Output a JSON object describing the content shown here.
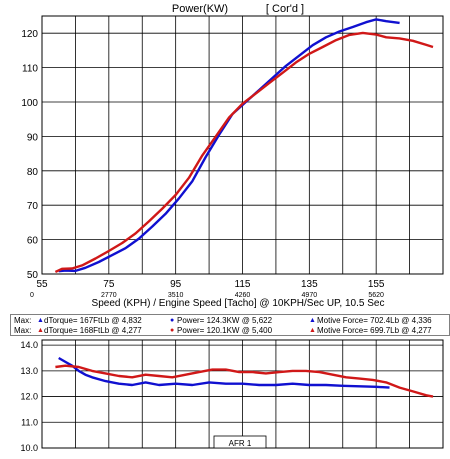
{
  "window": {
    "title": "Power(KW)",
    "mode": "[ Cor'd ]"
  },
  "colors": {
    "run1": "#1010d0",
    "run2": "#d01818",
    "grid": "#000000",
    "background": "#ffffff"
  },
  "chart_data": [
    {
      "type": "line",
      "title": "Power(KW)",
      "subtitle": "[ Cor'd ]",
      "xlabel": "Speed (KPH) / Engine Speed [Tacho] @ 10KPH/Sec UP, 10.5 Sec",
      "ylabel": "",
      "xlim": [
        55,
        175
      ],
      "ylim": [
        50,
        125
      ],
      "grid": true,
      "legend": "none",
      "x_ticks": [
        "55",
        "75",
        "95",
        "115",
        "135",
        "155"
      ],
      "x_secondary_ticks": [
        "0",
        "2770",
        "3510",
        "4260",
        "4970",
        "5620"
      ],
      "y_ticks": [
        "50",
        "60",
        "70",
        "80",
        "90",
        "100",
        "110",
        "120"
      ],
      "series": [
        {
          "color": "#1010d0",
          "points": [
            [
              60,
              50.8
            ],
            [
              62,
              51.0
            ],
            [
              65,
              50.9
            ],
            [
              68,
              51.8
            ],
            [
              72,
              53.5
            ],
            [
              76,
              55.5
            ],
            [
              80,
              57.5
            ],
            [
              84,
              60.3
            ],
            [
              88,
              63.8
            ],
            [
              92,
              67.5
            ],
            [
              96,
              72.0
            ],
            [
              100,
              77.0
            ],
            [
              104,
              84.0
            ],
            [
              108,
              90.5
            ],
            [
              112,
              96.5
            ],
            [
              116,
              100.0
            ],
            [
              120,
              103.5
            ],
            [
              124,
              107.0
            ],
            [
              128,
              110.5
            ],
            [
              132,
              113.5
            ],
            [
              136,
              116.5
            ],
            [
              140,
              118.8
            ],
            [
              144,
              120.5
            ],
            [
              148,
              121.8
            ],
            [
              152,
              123.2
            ],
            [
              155,
              124.0
            ],
            [
              158,
              123.5
            ],
            [
              162,
              123.0
            ]
          ]
        },
        {
          "color": "#d01818",
          "points": [
            [
              59,
              50.6
            ],
            [
              61,
              51.5
            ],
            [
              64,
              51.6
            ],
            [
              67,
              52.5
            ],
            [
              71,
              54.5
            ],
            [
              75,
              56.7
            ],
            [
              79,
              59.0
            ],
            [
              83,
              61.8
            ],
            [
              87,
              65.3
            ],
            [
              91,
              69.0
            ],
            [
              95,
              73.0
            ],
            [
              99,
              78.0
            ],
            [
              103,
              84.5
            ],
            [
              107,
              90.0
            ],
            [
              111,
              95.5
            ],
            [
              115,
              99.5
            ],
            [
              119,
              102.5
            ],
            [
              123,
              105.5
            ],
            [
              127,
              108.5
            ],
            [
              131,
              111.5
            ],
            [
              135,
              114.0
            ],
            [
              139,
              116.0
            ],
            [
              143,
              118.0
            ],
            [
              147,
              119.5
            ],
            [
              151,
              120.1
            ],
            [
              155,
              119.6
            ],
            [
              158,
              118.8
            ],
            [
              162,
              118.5
            ],
            [
              166,
              117.8
            ],
            [
              170,
              116.6
            ],
            [
              172,
              116.0
            ]
          ]
        }
      ]
    },
    {
      "type": "line",
      "title": "AFR 1",
      "xlim": [
        55,
        175
      ],
      "ylim": [
        10.0,
        14.2
      ],
      "grid": true,
      "y_ticks": [
        "10.0",
        "11.0",
        "12.0",
        "13.0",
        "14.0"
      ],
      "series": [
        {
          "color": "#1010d0",
          "points": [
            [
              60,
              13.5
            ],
            [
              62,
              13.35
            ],
            [
              64,
              13.2
            ],
            [
              66,
              13.0
            ],
            [
              68,
              12.85
            ],
            [
              70,
              12.75
            ],
            [
              74,
              12.6
            ],
            [
              78,
              12.5
            ],
            [
              82,
              12.45
            ],
            [
              86,
              12.55
            ],
            [
              90,
              12.45
            ],
            [
              95,
              12.5
            ],
            [
              100,
              12.45
            ],
            [
              105,
              12.55
            ],
            [
              110,
              12.5
            ],
            [
              115,
              12.5
            ],
            [
              120,
              12.45
            ],
            [
              125,
              12.45
            ],
            [
              130,
              12.5
            ],
            [
              135,
              12.45
            ],
            [
              140,
              12.45
            ],
            [
              145,
              12.42
            ],
            [
              150,
              12.4
            ],
            [
              155,
              12.38
            ],
            [
              159,
              12.35
            ]
          ]
        },
        {
          "color": "#d01818",
          "points": [
            [
              59,
              13.15
            ],
            [
              62,
              13.2
            ],
            [
              66,
              13.15
            ],
            [
              70,
              13.0
            ],
            [
              74,
              12.9
            ],
            [
              78,
              12.8
            ],
            [
              82,
              12.75
            ],
            [
              86,
              12.85
            ],
            [
              90,
              12.8
            ],
            [
              94,
              12.75
            ],
            [
              98,
              12.85
            ],
            [
              102,
              12.95
            ],
            [
              106,
              13.05
            ],
            [
              110,
              13.05
            ],
            [
              114,
              12.95
            ],
            [
              118,
              12.95
            ],
            [
              122,
              12.9
            ],
            [
              126,
              12.95
            ],
            [
              130,
              13.0
            ],
            [
              134,
              13.0
            ],
            [
              138,
              12.95
            ],
            [
              142,
              12.85
            ],
            [
              146,
              12.75
            ],
            [
              150,
              12.7
            ],
            [
              154,
              12.65
            ],
            [
              158,
              12.55
            ],
            [
              162,
              12.35
            ],
            [
              166,
              12.2
            ],
            [
              170,
              12.05
            ],
            [
              172,
              12.0
            ]
          ]
        }
      ]
    }
  ],
  "stats": {
    "row1": {
      "max": "Max:",
      "torque": "dTorque= 167FtLb @ 4,832",
      "power": "Power= 124.3KW @ 5,622",
      "force": "Motive Force= 702.4Lb @ 4,336"
    },
    "row2": {
      "max": "Max:",
      "torque": "dTorque= 168FtLb @ 4,277",
      "power": "Power= 120.1KW @ 5,400",
      "force": "Motive Force= 699.7Lb @ 4,277"
    }
  }
}
